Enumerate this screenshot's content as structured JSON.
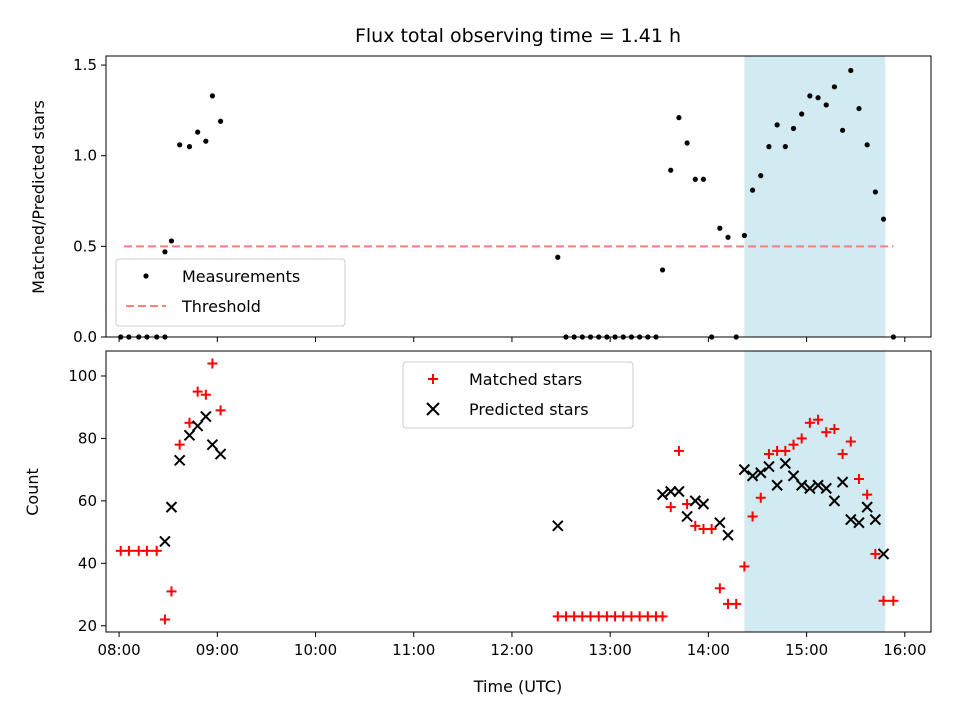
{
  "chart_data": [
    {
      "type": "scatter",
      "title": "Flux total observing time = 1.41 h",
      "xlabel": "",
      "ylabel": "Matched/Predicted stars",
      "xlim": [
        "07:52",
        "16:16"
      ],
      "ylim": [
        0,
        1.55
      ],
      "yticks": [
        0.0,
        0.5,
        1.0,
        1.5
      ],
      "ytick_labels": [
        "0.0",
        "0.5",
        "1.0",
        "1.5"
      ],
      "highlight_span": {
        "x_start": "14:22",
        "x_end": "15:48",
        "color": "#add8e6"
      },
      "legend": {
        "placement": "lower-left",
        "entries": [
          "Measurements",
          "Threshold"
        ]
      },
      "series": [
        {
          "name": "Measurements",
          "marker": "dot",
          "color": "#000000",
          "points": [
            [
              "08:01",
              0.0
            ],
            [
              "08:06",
              0.0
            ],
            [
              "08:12",
              0.0
            ],
            [
              "08:17",
              0.0
            ],
            [
              "08:23",
              0.0
            ],
            [
              "08:28",
              0.0
            ],
            [
              "08:28",
              0.47
            ],
            [
              "08:32",
              0.53
            ],
            [
              "08:37",
              1.06
            ],
            [
              "08:43",
              1.05
            ],
            [
              "08:48",
              1.13
            ],
            [
              "08:53",
              1.08
            ],
            [
              "08:57",
              1.33
            ],
            [
              "09:02",
              1.19
            ],
            [
              "12:28",
              0.44
            ],
            [
              "12:33",
              0.0
            ],
            [
              "12:38",
              0.0
            ],
            [
              "12:43",
              0.0
            ],
            [
              "12:48",
              0.0
            ],
            [
              "12:53",
              0.0
            ],
            [
              "12:58",
              0.0
            ],
            [
              "13:03",
              0.0
            ],
            [
              "13:08",
              0.0
            ],
            [
              "13:13",
              0.0
            ],
            [
              "13:18",
              0.0
            ],
            [
              "13:23",
              0.0
            ],
            [
              "13:28",
              0.0
            ],
            [
              "13:32",
              0.37
            ],
            [
              "13:37",
              0.92
            ],
            [
              "13:42",
              1.21
            ],
            [
              "13:47",
              1.07
            ],
            [
              "13:52",
              0.87
            ],
            [
              "13:57",
              0.87
            ],
            [
              "14:02",
              0.0
            ],
            [
              "14:07",
              0.6
            ],
            [
              "14:12",
              0.55
            ],
            [
              "14:17",
              0.0
            ],
            [
              "14:22",
              0.56
            ],
            [
              "14:27",
              0.81
            ],
            [
              "14:32",
              0.89
            ],
            [
              "14:37",
              1.05
            ],
            [
              "14:42",
              1.17
            ],
            [
              "14:47",
              1.05
            ],
            [
              "14:52",
              1.15
            ],
            [
              "14:57",
              1.23
            ],
            [
              "15:02",
              1.33
            ],
            [
              "15:07",
              1.32
            ],
            [
              "15:12",
              1.28
            ],
            [
              "15:17",
              1.38
            ],
            [
              "15:22",
              1.14
            ],
            [
              "15:27",
              1.47
            ],
            [
              "15:32",
              1.26
            ],
            [
              "15:37",
              1.06
            ],
            [
              "15:42",
              0.8
            ],
            [
              "15:47",
              0.65
            ],
            [
              "15:53",
              0.0
            ]
          ]
        },
        {
          "name": "Threshold",
          "style": "dashed",
          "color": "#ff7f7f",
          "points": [
            [
              "08:03",
              0.5
            ],
            [
              "15:53",
              0.5
            ]
          ]
        }
      ]
    },
    {
      "type": "scatter",
      "title": "",
      "xlabel": "Time (UTC)",
      "ylabel": "Count",
      "xlim": [
        "07:52",
        "16:16"
      ],
      "ylim": [
        18,
        108
      ],
      "xticks": [
        "08:00",
        "09:00",
        "10:00",
        "11:00",
        "12:00",
        "13:00",
        "14:00",
        "15:00",
        "16:00"
      ],
      "yticks": [
        20,
        40,
        60,
        80,
        100
      ],
      "ytick_labels": [
        "20",
        "40",
        "60",
        "80",
        "100"
      ],
      "highlight_span": {
        "x_start": "14:22",
        "x_end": "15:48",
        "color": "#add8e6"
      },
      "legend": {
        "placement": "upper-center",
        "entries": [
          "Matched stars",
          "Predicted stars"
        ]
      },
      "series": [
        {
          "name": "Matched stars",
          "marker": "plus",
          "color": "#ff0000",
          "points": [
            [
              "08:01",
              44
            ],
            [
              "08:06",
              44
            ],
            [
              "08:12",
              44
            ],
            [
              "08:17",
              44
            ],
            [
              "08:23",
              44
            ],
            [
              "08:28",
              22
            ],
            [
              "08:32",
              31
            ],
            [
              "08:37",
              78
            ],
            [
              "08:43",
              85
            ],
            [
              "08:48",
              95
            ],
            [
              "08:53",
              94
            ],
            [
              "08:57",
              104
            ],
            [
              "09:02",
              89
            ],
            [
              "12:28",
              23
            ],
            [
              "12:33",
              23
            ],
            [
              "12:38",
              23
            ],
            [
              "12:43",
              23
            ],
            [
              "12:48",
              23
            ],
            [
              "12:53",
              23
            ],
            [
              "12:58",
              23
            ],
            [
              "13:03",
              23
            ],
            [
              "13:08",
              23
            ],
            [
              "13:13",
              23
            ],
            [
              "13:18",
              23
            ],
            [
              "13:23",
              23
            ],
            [
              "13:28",
              23
            ],
            [
              "13:32",
              23
            ],
            [
              "13:37",
              58
            ],
            [
              "13:42",
              76
            ],
            [
              "13:47",
              59
            ],
            [
              "13:52",
              52
            ],
            [
              "13:57",
              51
            ],
            [
              "14:02",
              51
            ],
            [
              "14:07",
              32
            ],
            [
              "14:12",
              27
            ],
            [
              "14:17",
              27
            ],
            [
              "14:22",
              39
            ],
            [
              "14:27",
              55
            ],
            [
              "14:32",
              61
            ],
            [
              "14:37",
              75
            ],
            [
              "14:42",
              76
            ],
            [
              "14:47",
              76
            ],
            [
              "14:52",
              78
            ],
            [
              "14:57",
              80
            ],
            [
              "15:02",
              85
            ],
            [
              "15:07",
              86
            ],
            [
              "15:12",
              82
            ],
            [
              "15:17",
              83
            ],
            [
              "15:22",
              75
            ],
            [
              "15:27",
              79
            ],
            [
              "15:32",
              67
            ],
            [
              "15:37",
              62
            ],
            [
              "15:42",
              43
            ],
            [
              "15:47",
              28
            ],
            [
              "15:53",
              28
            ]
          ]
        },
        {
          "name": "Predicted stars",
          "marker": "x",
          "color": "#000000",
          "points": [
            [
              "08:28",
              47
            ],
            [
              "08:32",
              58
            ],
            [
              "08:37",
              73
            ],
            [
              "08:43",
              81
            ],
            [
              "08:48",
              84
            ],
            [
              "08:53",
              87
            ],
            [
              "08:57",
              78
            ],
            [
              "09:02",
              75
            ],
            [
              "12:28",
              52
            ],
            [
              "13:32",
              62
            ],
            [
              "13:37",
              63
            ],
            [
              "13:42",
              63
            ],
            [
              "13:47",
              55
            ],
            [
              "13:52",
              60
            ],
            [
              "13:57",
              59
            ],
            [
              "14:07",
              53
            ],
            [
              "14:12",
              49
            ],
            [
              "14:22",
              70
            ],
            [
              "14:27",
              68
            ],
            [
              "14:32",
              69
            ],
            [
              "14:37",
              71
            ],
            [
              "14:42",
              65
            ],
            [
              "14:47",
              72
            ],
            [
              "14:52",
              68
            ],
            [
              "14:57",
              65
            ],
            [
              "15:02",
              64
            ],
            [
              "15:07",
              65
            ],
            [
              "15:12",
              64
            ],
            [
              "15:17",
              60
            ],
            [
              "15:22",
              66
            ],
            [
              "15:27",
              54
            ],
            [
              "15:32",
              53
            ],
            [
              "15:37",
              58
            ],
            [
              "15:42",
              54
            ],
            [
              "15:47",
              43
            ]
          ]
        }
      ]
    }
  ]
}
